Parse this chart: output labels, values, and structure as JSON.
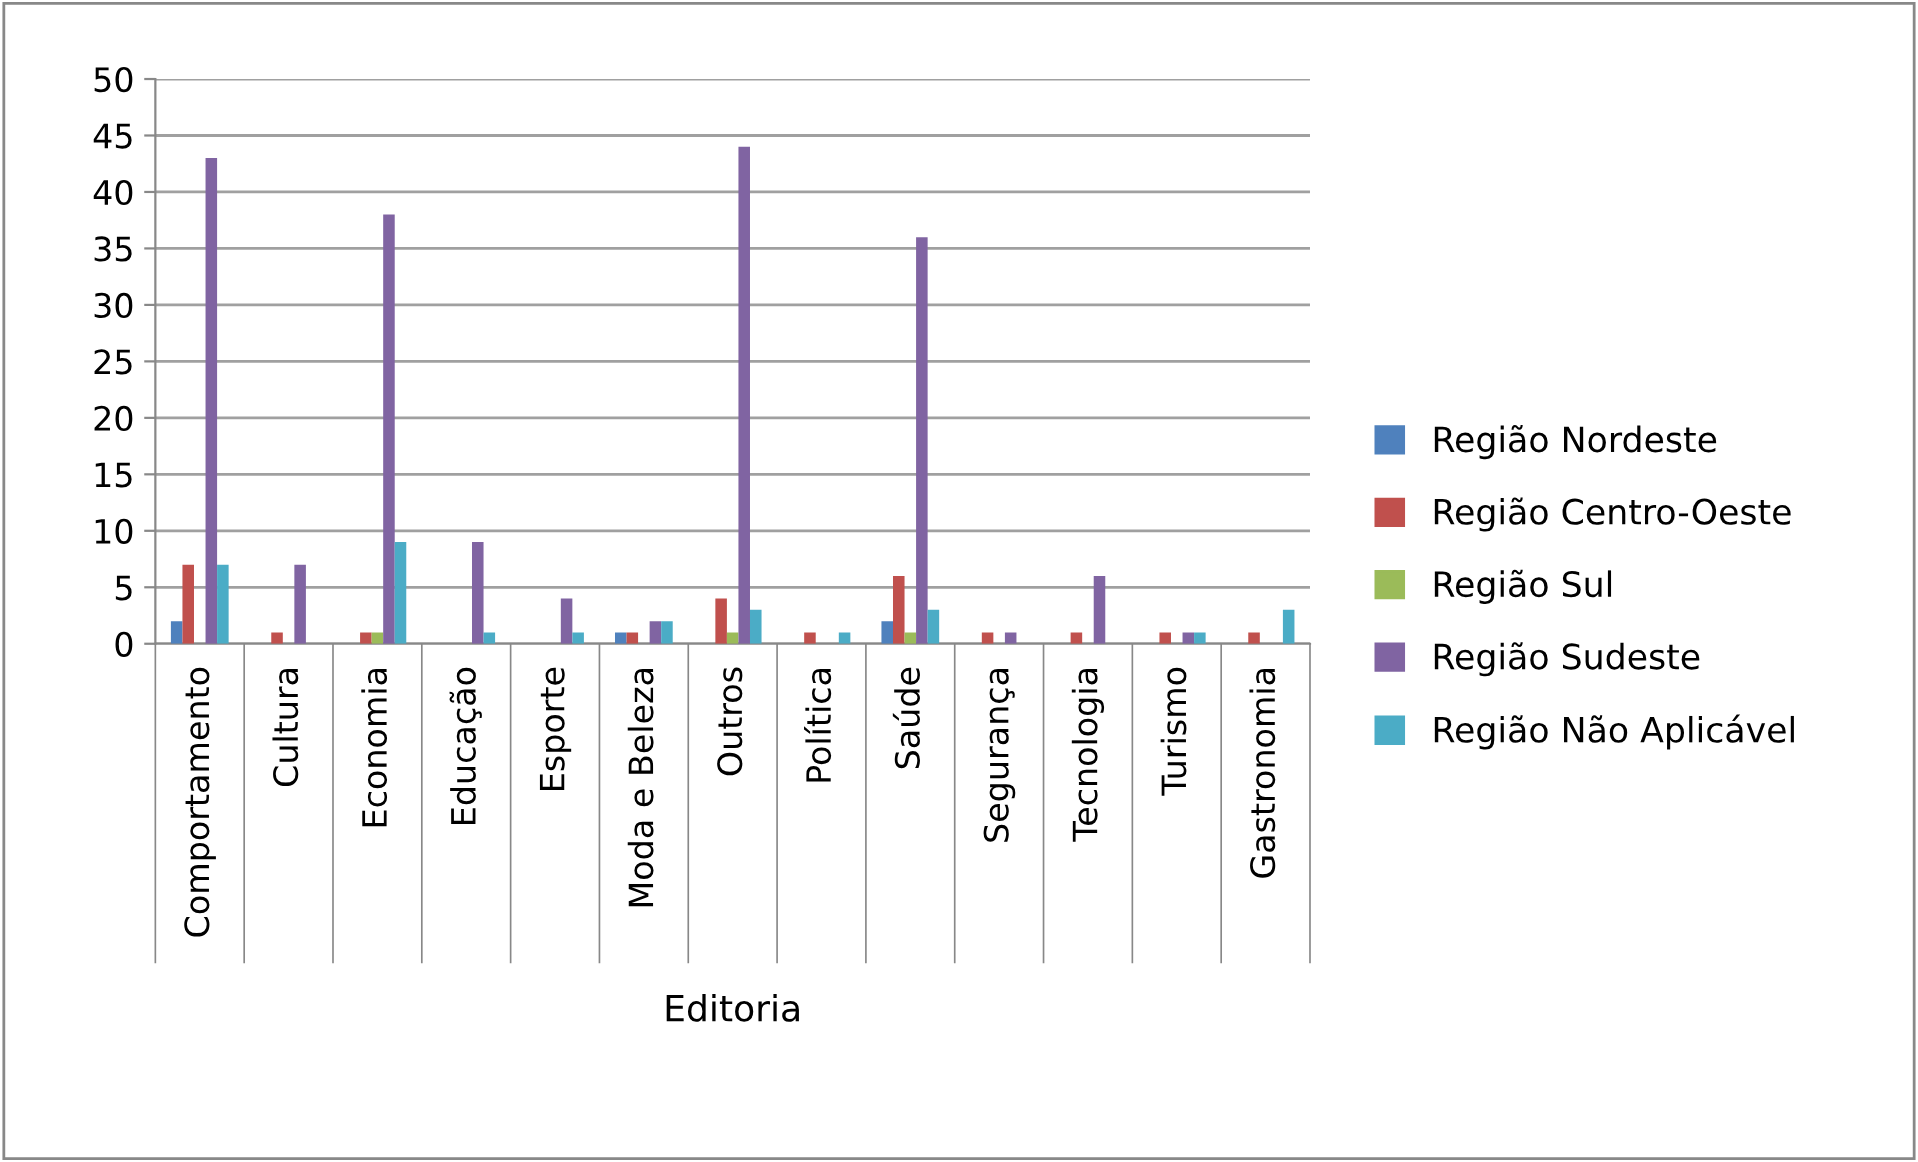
{
  "chart_data": {
    "type": "bar",
    "xlabel": "Editoria",
    "categories": [
      "Comportamento",
      "Cultura",
      "Economia",
      "Educação",
      "Esporte",
      "Moda e Beleza",
      "Outros",
      "Política",
      "Saúde",
      "Segurança",
      "Tecnologia",
      "Turismo",
      "Gastronomia"
    ],
    "series": [
      {
        "name": "Região Nordeste",
        "color": "#4f81bd",
        "values": [
          2,
          0,
          0,
          0,
          0,
          1,
          0,
          0,
          2,
          0,
          0,
          0,
          0
        ]
      },
      {
        "name": "Região Centro-Oeste",
        "color": "#c0504d",
        "values": [
          7,
          1,
          1,
          0,
          0,
          1,
          4,
          1,
          6,
          1,
          1,
          1,
          1
        ]
      },
      {
        "name": "Região Sul",
        "color": "#9bbb59",
        "values": [
          0,
          0,
          1,
          0,
          0,
          0,
          1,
          0,
          1,
          0,
          0,
          0,
          0
        ]
      },
      {
        "name": "Região Sudeste",
        "color": "#8064a2",
        "values": [
          43,
          7,
          38,
          9,
          4,
          2,
          44,
          0,
          36,
          1,
          6,
          1,
          0
        ]
      },
      {
        "name": "Região Não Aplicável",
        "color": "#4bacc6",
        "values": [
          7,
          0,
          9,
          1,
          1,
          2,
          3,
          1,
          3,
          0,
          0,
          1,
          3
        ]
      }
    ],
    "ylim": [
      0,
      50
    ],
    "yticks": [
      0,
      5,
      10,
      15,
      20,
      25,
      30,
      35,
      40,
      45,
      50
    ],
    "grid": "y",
    "legend": "right"
  }
}
